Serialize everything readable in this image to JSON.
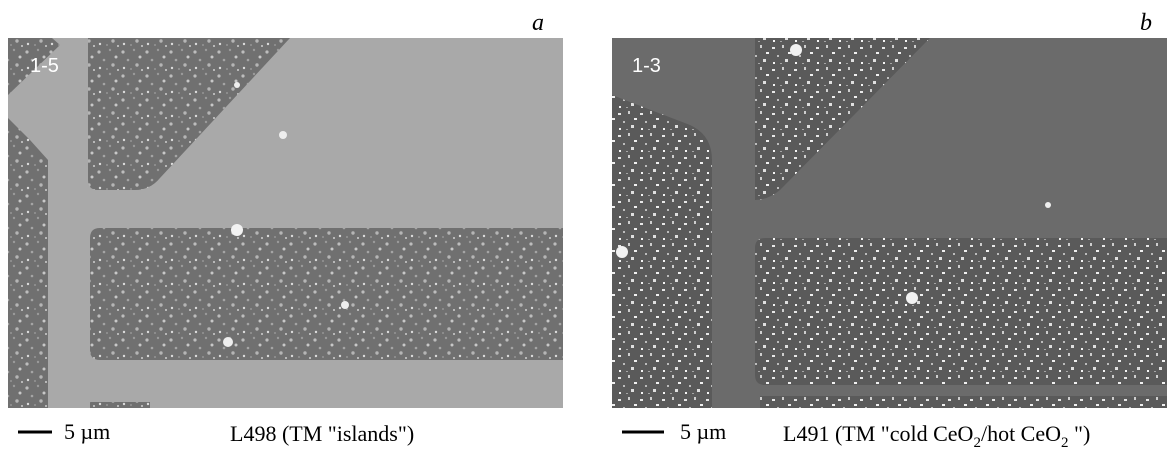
{
  "panels": [
    {
      "letter": "a",
      "sample_label": "1-5",
      "scale_bar": "5 µm",
      "caption_parts": [
        "L498 (TM \"islands\")"
      ]
    },
    {
      "letter": "b",
      "sample_label": "1-3",
      "scale_bar": "5 µm",
      "caption_parts": [
        "L491 (TM \"cold CeO",
        "2",
        "/hot CeO",
        "2",
        " \")"
      ]
    }
  ]
}
